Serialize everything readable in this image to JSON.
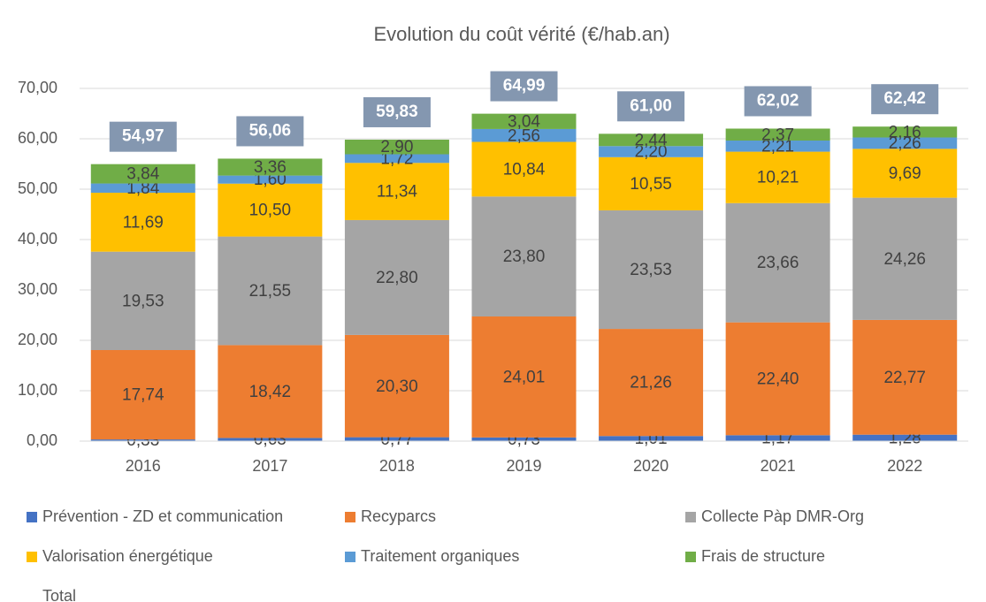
{
  "chart_data": {
    "type": "stacked_bar",
    "title": "Evolution du coût vérité (€/hab.an)",
    "categories": [
      "2016",
      "2017",
      "2018",
      "2019",
      "2020",
      "2021",
      "2022"
    ],
    "ylim": [
      0,
      70
    ],
    "yticks": [
      {
        "value": 0,
        "label": "0,00"
      },
      {
        "value": 10,
        "label": "10,00"
      },
      {
        "value": 20,
        "label": "20,00"
      },
      {
        "value": 30,
        "label": "30,00"
      },
      {
        "value": 40,
        "label": "40,00"
      },
      {
        "value": 50,
        "label": "50,00"
      },
      {
        "value": 60,
        "label": "60,00"
      },
      {
        "value": 70,
        "label": "70,00"
      }
    ],
    "grid": true,
    "legend": "bottom",
    "series": [
      {
        "name": "Prévention - ZD et communication",
        "color": "#4472c4",
        "values": [
          0.33,
          0.63,
          0.77,
          0.73,
          1.01,
          1.17,
          1.28
        ],
        "value_labels": [
          "0,33",
          "0,63",
          "0,77",
          "0,73",
          "1,01",
          "1,17",
          "1,28"
        ]
      },
      {
        "name": "Recyparcs",
        "color": "#ed7d31",
        "values": [
          17.74,
          18.42,
          20.3,
          24.01,
          21.26,
          22.4,
          22.77
        ],
        "value_labels": [
          "17,74",
          "18,42",
          "20,30",
          "24,01",
          "21,26",
          "22,40",
          "22,77"
        ]
      },
      {
        "name": "Collecte Pàp DMR-Org",
        "color": "#a5a5a5",
        "values": [
          19.53,
          21.55,
          22.8,
          23.8,
          23.53,
          23.66,
          24.26
        ],
        "value_labels": [
          "19,53",
          "21,55",
          "22,80",
          "23,80",
          "23,53",
          "23,66",
          "24,26"
        ]
      },
      {
        "name": "Valorisation énergétique",
        "color": "#ffc000",
        "values": [
          11.69,
          10.5,
          11.34,
          10.84,
          10.55,
          10.21,
          9.69
        ],
        "value_labels": [
          "11,69",
          "10,50",
          "11,34",
          "10,84",
          "10,55",
          "10,21",
          "9,69"
        ]
      },
      {
        "name": "Traitement organiques",
        "color": "#5b9bd5",
        "values": [
          1.84,
          1.6,
          1.72,
          2.56,
          2.2,
          2.21,
          2.26
        ],
        "value_labels": [
          "1,84",
          "1,60",
          "1,72",
          "2,56",
          "2,20",
          "2,21",
          "2,26"
        ]
      },
      {
        "name": "Frais de structure",
        "color": "#70ad47",
        "values": [
          3.84,
          3.36,
          2.9,
          3.04,
          2.44,
          2.37,
          2.16
        ],
        "value_labels": [
          "3,84",
          "3,36",
          "2,90",
          "3,04",
          "2,44",
          "2,37",
          "2,16"
        ]
      },
      {
        "name": "Total",
        "kind": "total",
        "color": "#8497b0",
        "values": [
          54.97,
          56.06,
          59.83,
          64.99,
          61.0,
          62.02,
          62.42
        ],
        "value_labels": [
          "54,97",
          "56,06",
          "59,83",
          "64,99",
          "61,00",
          "62,02",
          "62,42"
        ]
      }
    ]
  }
}
